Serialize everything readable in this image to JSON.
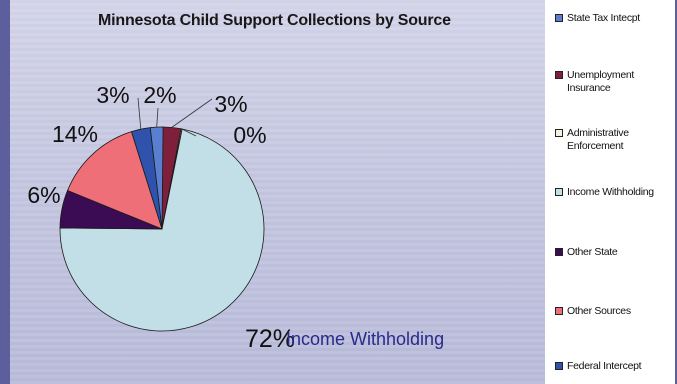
{
  "chart_data": {
    "type": "pie",
    "title": "Minnesota Child Support Collections by Source",
    "slices": [
      {
        "label": "State Tax Intercept",
        "value": 2,
        "display": "2%",
        "color": "#5a7fd0"
      },
      {
        "label": "Unemployment Insurance",
        "value": 3,
        "display": "3%",
        "color": "#7e1f3c"
      },
      {
        "label": "Administrative Enforcement",
        "value": 0,
        "display": "0%",
        "color": "#f2f2de"
      },
      {
        "label": "Income Withholding",
        "value": 72,
        "display": "72%",
        "color": "#c2dee6"
      },
      {
        "label": "Other State",
        "value": 6,
        "display": "6%",
        "color": "#3b0b54"
      },
      {
        "label": "Other Sources",
        "value": 14,
        "display": "14%",
        "color": "#ee6f78"
      },
      {
        "label": "Federal Intercept",
        "value": 3,
        "display": "3%",
        "color": "#2f53ad"
      }
    ],
    "annotation": "Income Withholding",
    "legend": {
      "position": "right"
    }
  },
  "legend_items": [
    "State Tax Intecpt",
    "Unemployment Insurance",
    "Administrative Enforcement",
    "Income Withholding",
    "Other State",
    "Other Sources",
    "Federal Intercept"
  ]
}
